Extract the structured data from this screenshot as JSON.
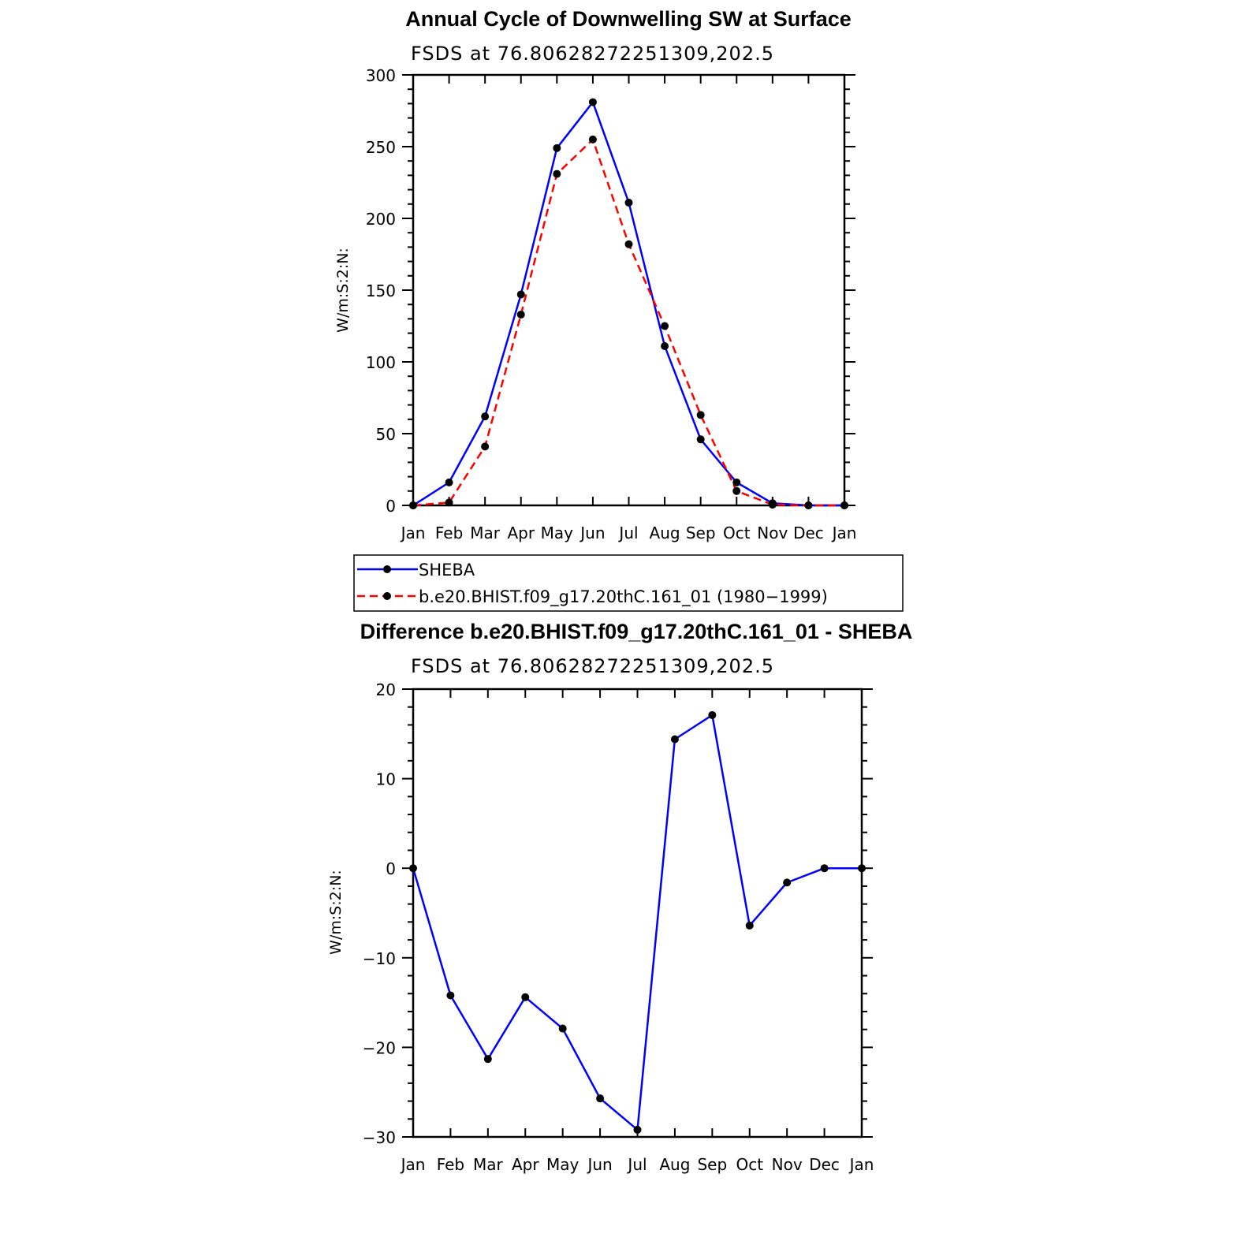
{
  "chart_data": [
    {
      "type": "line",
      "title": "Annual Cycle of Downwelling SW at Surface",
      "subtitle": "FSDS at 76.80628272251309,202.5",
      "xlabel": "",
      "ylabel": "W/m:S:2:N:",
      "categories": [
        "Jan",
        "Feb",
        "Mar",
        "Apr",
        "May",
        "Jun",
        "Jul",
        "Aug",
        "Sep",
        "Oct",
        "Nov",
        "Dec",
        "Jan"
      ],
      "ylim": [
        0,
        300
      ],
      "yticks": [
        0,
        50,
        100,
        150,
        200,
        250,
        300
      ],
      "grid": false,
      "series": [
        {
          "name": "SHEBA",
          "color": "#0000ff",
          "dash": "solid",
          "values": [
            0,
            16,
            62,
            147,
            249,
            281,
            211,
            111,
            46,
            16,
            1.5,
            0,
            0
          ]
        },
        {
          "name": "b.e20.BHIST.f09_g17.20thC.161_01 (1980−1999)",
          "color": "#ff0000",
          "dash": "dashed",
          "values": [
            0,
            2,
            41,
            133,
            231,
            255,
            182,
            125,
            63,
            10,
            0.5,
            0,
            0
          ]
        }
      ],
      "legend": {
        "placement": "below"
      }
    },
    {
      "type": "line",
      "title": "Difference b.e20.BHIST.f09_g17.20thC.161_01 - SHEBA",
      "subtitle": "FSDS at 76.80628272251309,202.5",
      "xlabel": "",
      "ylabel": "W/m:S:2:N:",
      "categories": [
        "Jan",
        "Feb",
        "Mar",
        "Apr",
        "May",
        "Jun",
        "Jul",
        "Aug",
        "Sep",
        "Oct",
        "Nov",
        "Dec",
        "Jan"
      ],
      "ylim": [
        -30,
        20
      ],
      "yticks": [
        -30,
        -20,
        -10,
        0,
        10,
        20
      ],
      "ytick_labels": [
        "−30",
        "−20",
        "−10",
        "0",
        "10",
        "20"
      ],
      "grid": false,
      "series": [
        {
          "name": "",
          "color": "#0000ff",
          "dash": "solid",
          "values": [
            0,
            -14.2,
            -21.3,
            -14.4,
            -17.9,
            -25.7,
            -29.2,
            14.4,
            17.1,
            -6.4,
            -1.6,
            0,
            0
          ]
        }
      ]
    }
  ]
}
